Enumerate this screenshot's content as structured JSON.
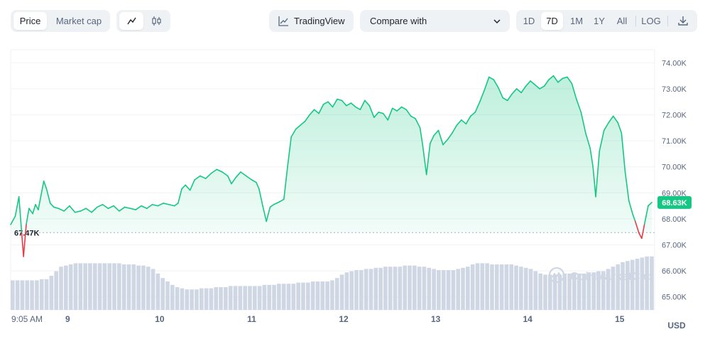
{
  "toolbar": {
    "view_tabs": [
      {
        "label": "Price",
        "active": true
      },
      {
        "label": "Market cap",
        "active": false
      }
    ],
    "chart_type_icons": [
      "line-chart-icon",
      "candlestick-icon"
    ],
    "tradingview_label": "TradingView",
    "compare_label": "Compare with",
    "range_tabs": [
      {
        "label": "1D",
        "active": false
      },
      {
        "label": "7D",
        "active": true
      },
      {
        "label": "1M",
        "active": false
      },
      {
        "label": "1Y",
        "active": false
      },
      {
        "label": "All",
        "active": false
      }
    ],
    "log_label": "LOG",
    "download_icon": "download-icon"
  },
  "watermark": "CoinMarketCap",
  "currency_label": "USD",
  "colors": {
    "up": "#16c784",
    "down": "#ea3943",
    "volume": "#cfd6e4",
    "grid": "#f0f2f5",
    "reference": "#a6b0c3"
  },
  "chart_data": {
    "type": "line",
    "ylim": [
      64500,
      74500
    ],
    "y_ticks": [
      "74.00K",
      "73.00K",
      "72.00K",
      "71.00K",
      "70.00K",
      "69.00K",
      "68.00K",
      "67.00K",
      "66.00K",
      "65.00K"
    ],
    "y_tick_values": [
      74000,
      73000,
      72000,
      71000,
      70000,
      69000,
      68000,
      67000,
      66000,
      65000
    ],
    "x_ticks": [
      "9:05 AM",
      "9",
      "10",
      "11",
      "12",
      "13",
      "14",
      "15"
    ],
    "x_tick_values": [
      0,
      0.62,
      1.62,
      2.62,
      3.62,
      4.62,
      5.62,
      6.62
    ],
    "reference_value": 67470,
    "reference_label": "67.47K",
    "current_value": 68630,
    "current_label": "68.63K",
    "xlim": [
      0,
      7
    ],
    "series": [
      {
        "points": [
          [
            0.0,
            67780
          ],
          [
            0.05,
            68100
          ],
          [
            0.09,
            68850
          ],
          [
            0.12,
            67470
          ],
          [
            0.14,
            66550
          ],
          [
            0.17,
            67800
          ],
          [
            0.2,
            68400
          ],
          [
            0.24,
            68200
          ],
          [
            0.27,
            68550
          ],
          [
            0.3,
            68350
          ],
          [
            0.33,
            68900
          ],
          [
            0.36,
            69450
          ],
          [
            0.39,
            69150
          ],
          [
            0.43,
            68600
          ],
          [
            0.47,
            68450
          ],
          [
            0.52,
            68400
          ],
          [
            0.58,
            68300
          ],
          [
            0.64,
            68500
          ],
          [
            0.7,
            68250
          ],
          [
            0.76,
            68300
          ],
          [
            0.82,
            68400
          ],
          [
            0.88,
            68250
          ],
          [
            0.94,
            68450
          ],
          [
            1.0,
            68550
          ],
          [
            1.06,
            68400
          ],
          [
            1.12,
            68500
          ],
          [
            1.18,
            68300
          ],
          [
            1.24,
            68450
          ],
          [
            1.3,
            68400
          ],
          [
            1.36,
            68350
          ],
          [
            1.42,
            68500
          ],
          [
            1.48,
            68400
          ],
          [
            1.54,
            68550
          ],
          [
            1.6,
            68500
          ],
          [
            1.66,
            68600
          ],
          [
            1.72,
            68550
          ],
          [
            1.78,
            68500
          ],
          [
            1.82,
            68600
          ],
          [
            1.86,
            69150
          ],
          [
            1.9,
            69300
          ],
          [
            1.95,
            69100
          ],
          [
            2.0,
            69500
          ],
          [
            2.06,
            69650
          ],
          [
            2.12,
            69550
          ],
          [
            2.18,
            69750
          ],
          [
            2.24,
            69900
          ],
          [
            2.3,
            69800
          ],
          [
            2.36,
            69650
          ],
          [
            2.4,
            69350
          ],
          [
            2.45,
            69600
          ],
          [
            2.5,
            69800
          ],
          [
            2.56,
            69650
          ],
          [
            2.62,
            69500
          ],
          [
            2.67,
            69400
          ],
          [
            2.7,
            69150
          ],
          [
            2.74,
            68500
          ],
          [
            2.78,
            67900
          ],
          [
            2.82,
            68450
          ],
          [
            2.86,
            68550
          ],
          [
            2.92,
            68650
          ],
          [
            2.97,
            68750
          ],
          [
            3.01,
            70000
          ],
          [
            3.05,
            71150
          ],
          [
            3.1,
            71450
          ],
          [
            3.15,
            71600
          ],
          [
            3.2,
            71750
          ],
          [
            3.25,
            72000
          ],
          [
            3.3,
            72200
          ],
          [
            3.35,
            72050
          ],
          [
            3.4,
            72400
          ],
          [
            3.45,
            72500
          ],
          [
            3.5,
            72300
          ],
          [
            3.55,
            72600
          ],
          [
            3.6,
            72550
          ],
          [
            3.65,
            72350
          ],
          [
            3.7,
            72450
          ],
          [
            3.75,
            72300
          ],
          [
            3.8,
            72200
          ],
          [
            3.85,
            72550
          ],
          [
            3.9,
            72350
          ],
          [
            3.95,
            71900
          ],
          [
            4.0,
            72100
          ],
          [
            4.05,
            72050
          ],
          [
            4.1,
            71800
          ],
          [
            4.15,
            72250
          ],
          [
            4.2,
            72150
          ],
          [
            4.25,
            72300
          ],
          [
            4.3,
            72200
          ],
          [
            4.35,
            71950
          ],
          [
            4.4,
            71850
          ],
          [
            4.45,
            71500
          ],
          [
            4.48,
            70800
          ],
          [
            4.52,
            69700
          ],
          [
            4.56,
            70900
          ],
          [
            4.6,
            71200
          ],
          [
            4.65,
            71400
          ],
          [
            4.7,
            70850
          ],
          [
            4.75,
            71050
          ],
          [
            4.8,
            71300
          ],
          [
            4.85,
            71600
          ],
          [
            4.9,
            71800
          ],
          [
            4.95,
            71650
          ],
          [
            5.0,
            71950
          ],
          [
            5.05,
            72100
          ],
          [
            5.1,
            72500
          ],
          [
            5.15,
            72950
          ],
          [
            5.2,
            73450
          ],
          [
            5.25,
            73350
          ],
          [
            5.3,
            73050
          ],
          [
            5.35,
            72650
          ],
          [
            5.4,
            72550
          ],
          [
            5.45,
            72800
          ],
          [
            5.5,
            73000
          ],
          [
            5.55,
            72850
          ],
          [
            5.6,
            73100
          ],
          [
            5.65,
            73300
          ],
          [
            5.7,
            73150
          ],
          [
            5.75,
            73000
          ],
          [
            5.8,
            73100
          ],
          [
            5.85,
            73350
          ],
          [
            5.9,
            73500
          ],
          [
            5.95,
            73250
          ],
          [
            6.0,
            73400
          ],
          [
            6.05,
            73450
          ],
          [
            6.1,
            73200
          ],
          [
            6.15,
            72600
          ],
          [
            6.2,
            72100
          ],
          [
            6.25,
            71300
          ],
          [
            6.3,
            70700
          ],
          [
            6.33,
            70000
          ],
          [
            6.36,
            68850
          ],
          [
            6.4,
            70600
          ],
          [
            6.45,
            71400
          ],
          [
            6.5,
            71700
          ],
          [
            6.55,
            71950
          ],
          [
            6.6,
            71700
          ],
          [
            6.64,
            71300
          ],
          [
            6.68,
            69800
          ],
          [
            6.72,
            68700
          ],
          [
            6.76,
            68200
          ],
          [
            6.79,
            67900
          ],
          [
            6.83,
            67450
          ],
          [
            6.86,
            67250
          ],
          [
            6.89,
            67800
          ],
          [
            6.93,
            68500
          ],
          [
            6.97,
            68630
          ]
        ]
      }
    ],
    "volume": {
      "values": [
        0.26,
        0.26,
        0.26,
        0.26,
        0.26,
        0.26,
        0.27,
        0.27,
        0.3,
        0.34,
        0.38,
        0.39,
        0.4,
        0.41,
        0.41,
        0.41,
        0.41,
        0.41,
        0.41,
        0.41,
        0.41,
        0.41,
        0.41,
        0.4,
        0.4,
        0.4,
        0.39,
        0.39,
        0.38,
        0.36,
        0.32,
        0.28,
        0.25,
        0.22,
        0.2,
        0.19,
        0.18,
        0.18,
        0.18,
        0.19,
        0.19,
        0.19,
        0.2,
        0.2,
        0.2,
        0.21,
        0.21,
        0.21,
        0.21,
        0.21,
        0.21,
        0.21,
        0.22,
        0.22,
        0.22,
        0.23,
        0.23,
        0.23,
        0.23,
        0.24,
        0.24,
        0.24,
        0.25,
        0.25,
        0.25,
        0.25,
        0.26,
        0.28,
        0.31,
        0.33,
        0.34,
        0.35,
        0.35,
        0.36,
        0.36,
        0.37,
        0.37,
        0.38,
        0.38,
        0.38,
        0.38,
        0.39,
        0.39,
        0.39,
        0.38,
        0.38,
        0.37,
        0.36,
        0.35,
        0.35,
        0.35,
        0.35,
        0.36,
        0.37,
        0.38,
        0.4,
        0.41,
        0.41,
        0.41,
        0.4,
        0.4,
        0.4,
        0.4,
        0.4,
        0.39,
        0.38,
        0.37,
        0.36,
        0.34,
        0.32,
        0.31,
        0.31,
        0.31,
        0.31,
        0.32,
        0.32,
        0.32,
        0.32,
        0.32,
        0.33,
        0.33,
        0.34,
        0.34,
        0.36,
        0.38,
        0.4,
        0.42,
        0.43,
        0.44,
        0.45,
        0.46,
        0.47,
        0.47
      ]
    }
  }
}
